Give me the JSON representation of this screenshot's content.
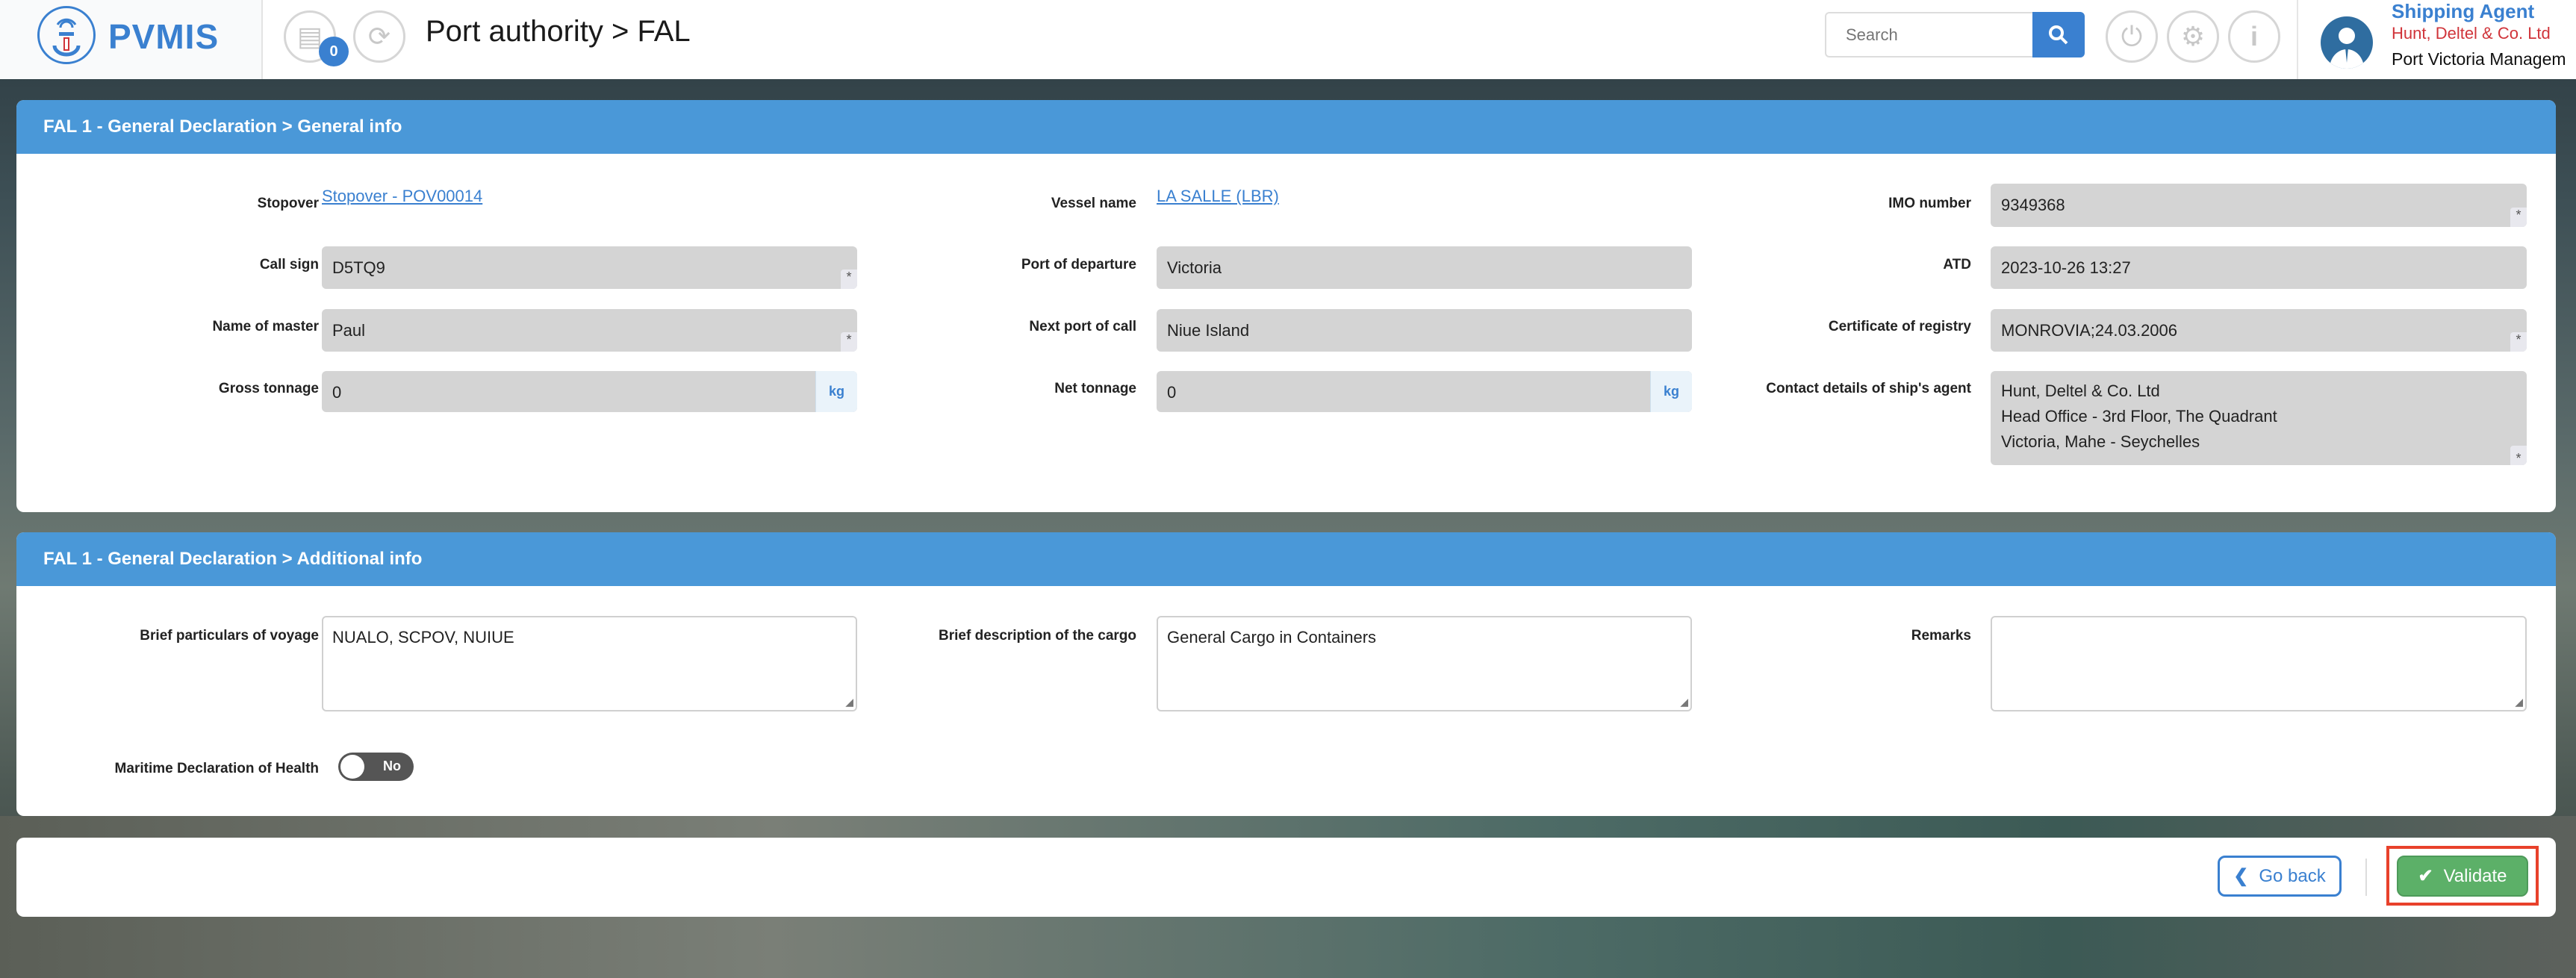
{
  "header": {
    "logo_text": "PVMIS",
    "notification_count": "0",
    "title": "Port authority > FAL",
    "search_placeholder": "Search",
    "user": {
      "role": "Shipping Agent",
      "company": "Hunt, Deltel & Co. Ltd",
      "organization": "Port Victoria Managem"
    }
  },
  "general_info": {
    "title": "FAL 1 - General Declaration > General info",
    "stopover_label": "Stopover",
    "stopover_value": "Stopover - POV00014",
    "vessel_label": "Vessel name",
    "vessel_value": "LA SALLE (LBR)",
    "imo_label": "IMO number",
    "imo_value": "9349368",
    "callsign_label": "Call sign",
    "callsign_value": "D5TQ9",
    "departure_label": "Port of departure",
    "departure_value": "Victoria",
    "atd_label": "ATD",
    "atd_value": "2023-10-26 13:27",
    "master_label": "Name of master",
    "master_value": "Paul",
    "next_port_label": "Next port of call",
    "next_port_value": "Niue Island",
    "registry_label": "Certificate of registry",
    "registry_value": "MONROVIA;24.03.2006",
    "gross_label": "Gross tonnage",
    "gross_value": "0",
    "net_label": "Net tonnage",
    "net_value": "0",
    "unit": "kg",
    "agent_label": "Contact details of ship's agent",
    "agent_lines": [
      "Hunt, Deltel & Co. Ltd",
      "Head Office - 3rd Floor, The Quadrant",
      "Victoria, Mahe - Seychelles"
    ],
    "required_mark": "*"
  },
  "additional_info": {
    "title": "FAL 1 - General Declaration > Additional info",
    "voyage_label": "Brief particulars of voyage",
    "voyage_value": "NUALO, SCPOV, NUIUE",
    "cargo_label": "Brief description of the cargo",
    "cargo_value": "General Cargo in Containers",
    "remarks_label": "Remarks",
    "remarks_value": "",
    "health_label": "Maritime Declaration of Health",
    "health_toggle": "No"
  },
  "footer": {
    "back_label": "Go back",
    "validate_label": "Validate"
  },
  "colors": {
    "primary": "#3a80d0",
    "panel_header": "#4a98d8",
    "validate": "#5cb068",
    "highlight": "#e8412b"
  }
}
